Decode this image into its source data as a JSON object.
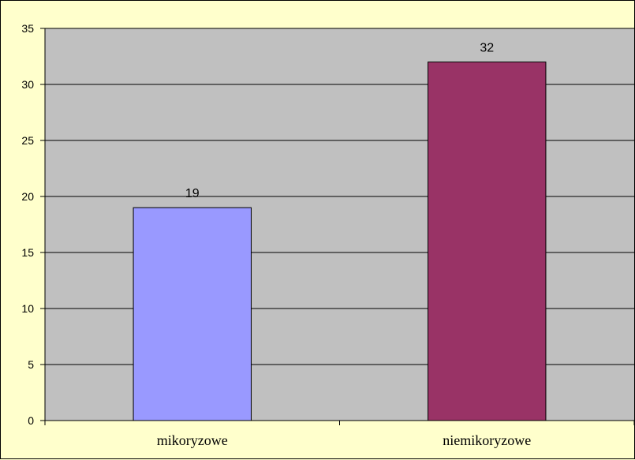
{
  "chart_data": {
    "type": "bar",
    "categories": [
      "mikoryzowe",
      "niemikoryzowe"
    ],
    "values": [
      19,
      32
    ],
    "colors": [
      "#9999ff",
      "#993366"
    ],
    "data_labels": [
      "19",
      "32"
    ],
    "title": "",
    "xlabel": "",
    "ylabel": "",
    "ylim": [
      0,
      35
    ],
    "yticks": [
      0,
      5,
      10,
      15,
      20,
      25,
      30,
      35
    ],
    "grid": true,
    "plot_background": "#c0c0c0",
    "chart_background": "#ffffcc"
  }
}
